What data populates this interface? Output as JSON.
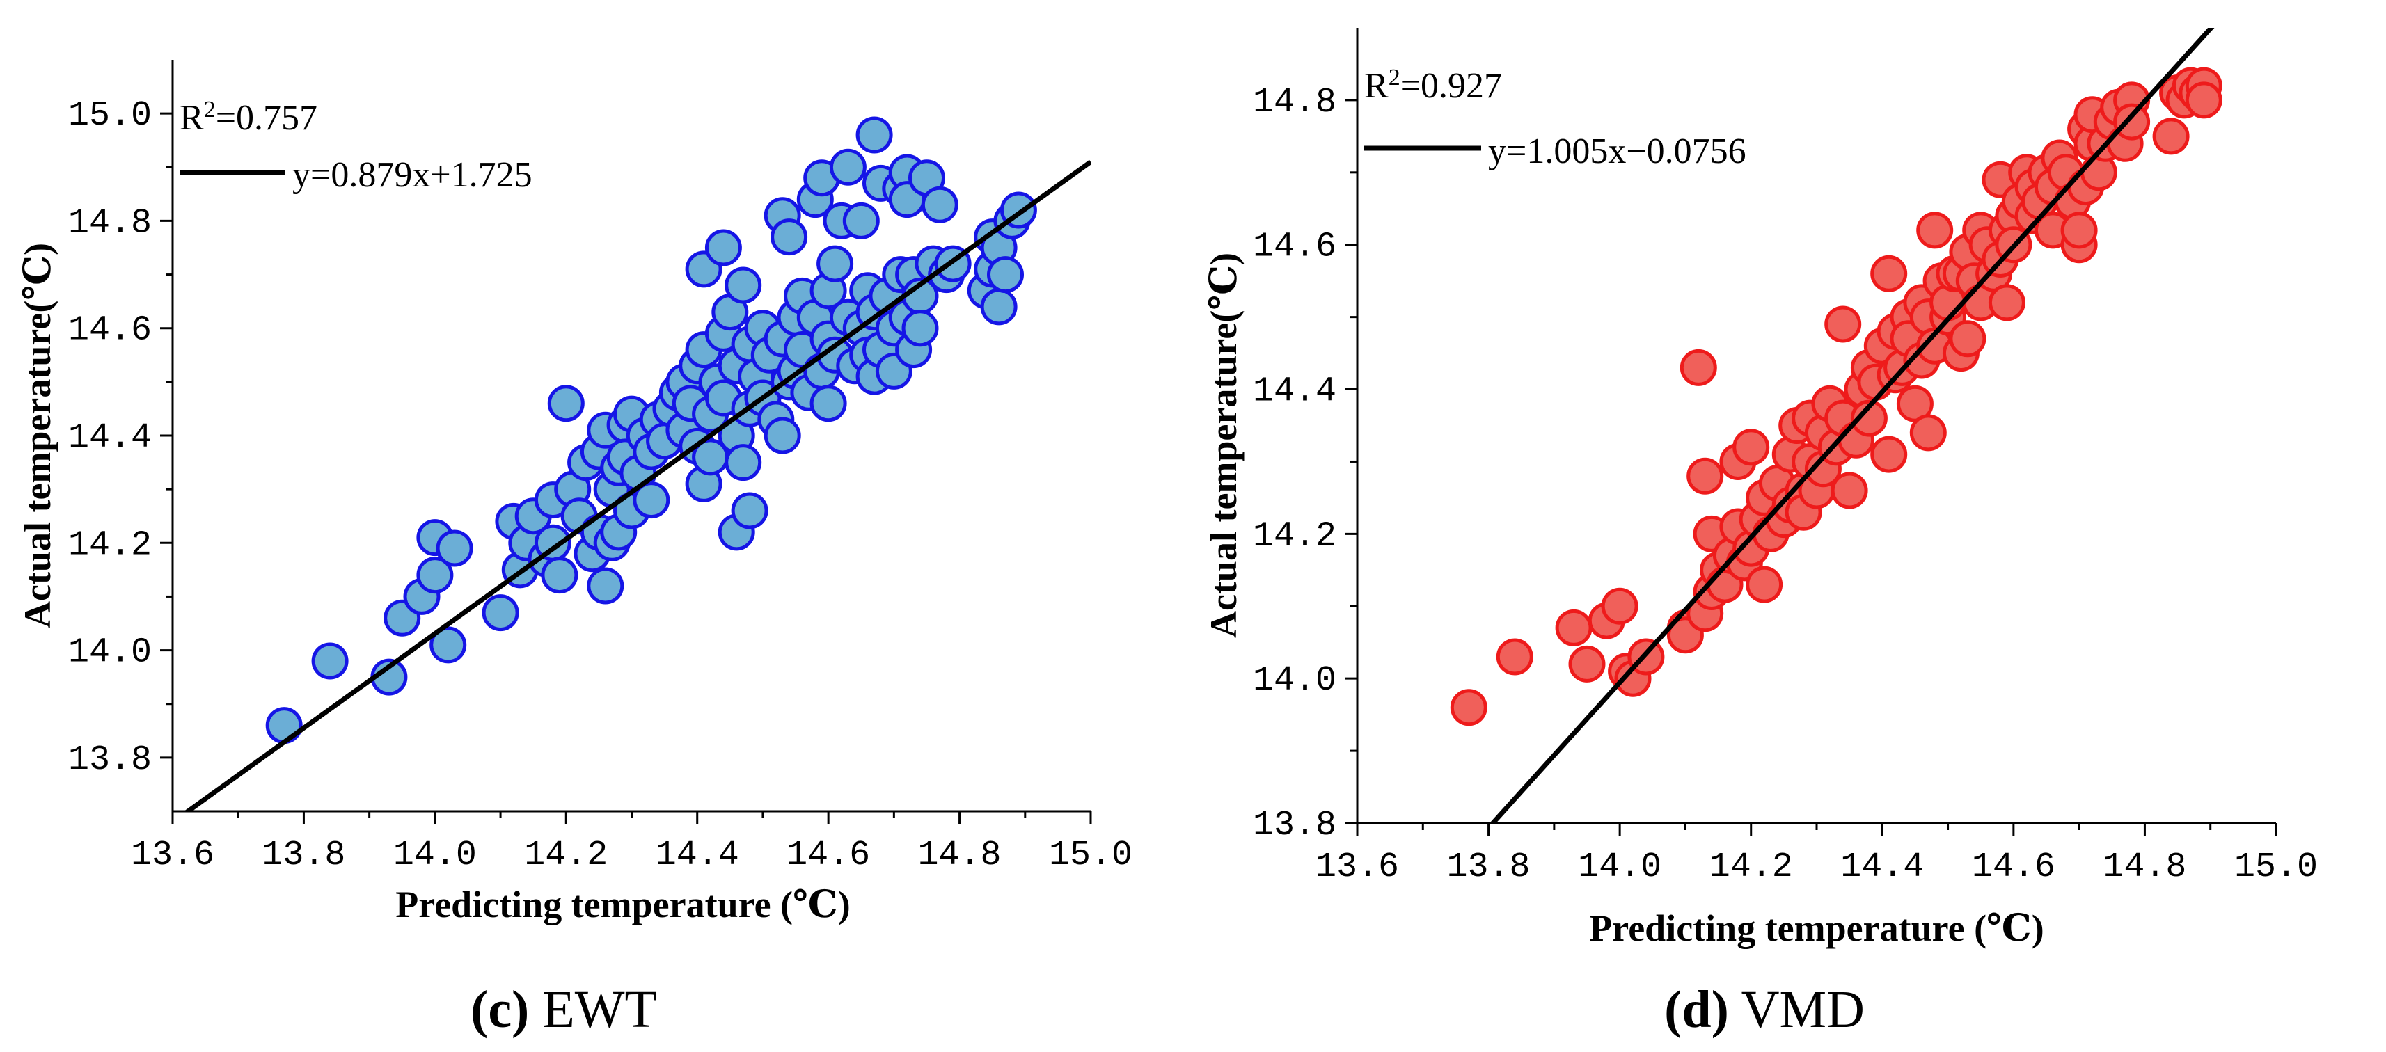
{
  "chart_data": [
    {
      "type": "scatter",
      "caption": {
        "letter": "(c)",
        "name": " EWT"
      },
      "xlabel": "Predicting temperature (℃)",
      "ylabel": "Actual temperature(℃)",
      "xlim": [
        13.6,
        15.0
      ],
      "ylim": [
        13.7,
        15.1
      ],
      "x_ticks": [
        "13.6",
        "13.8",
        "14.0",
        "14.2",
        "14.4",
        "14.6",
        "14.8",
        "15.0"
      ],
      "y_ticks": [
        "13.8",
        "14.0",
        "14.2",
        "14.4",
        "14.6",
        "14.8",
        "15.0"
      ],
      "r2_label": "R",
      "r2_sup": "2",
      "r2_value": "=0.757",
      "equation": "y=0.879x+1.725",
      "fit": {
        "slope": 0.879,
        "intercept": 1.725
      },
      "colors": {
        "fill": "#6baed6",
        "stroke": "#1515e6",
        "line": "#000000"
      },
      "points": [
        [
          13.77,
          13.86
        ],
        [
          13.84,
          13.98
        ],
        [
          13.93,
          13.95
        ],
        [
          13.95,
          14.06
        ],
        [
          13.98,
          14.1
        ],
        [
          14.0,
          14.14
        ],
        [
          14.0,
          14.21
        ],
        [
          14.02,
          14.01
        ],
        [
          14.03,
          14.19
        ],
        [
          14.1,
          14.07
        ],
        [
          14.12,
          14.24
        ],
        [
          14.13,
          14.15
        ],
        [
          14.14,
          14.2
        ],
        [
          14.15,
          14.25
        ],
        [
          14.17,
          14.17
        ],
        [
          14.18,
          14.2
        ],
        [
          14.18,
          14.28
        ],
        [
          14.19,
          14.14
        ],
        [
          14.2,
          14.46
        ],
        [
          14.21,
          14.3
        ],
        [
          14.22,
          14.25
        ],
        [
          14.23,
          14.35
        ],
        [
          14.24,
          14.18
        ],
        [
          14.25,
          14.22
        ],
        [
          14.25,
          14.37
        ],
        [
          14.26,
          14.41
        ],
        [
          14.26,
          14.12
        ],
        [
          14.27,
          14.2
        ],
        [
          14.27,
          14.3
        ],
        [
          14.28,
          14.34
        ],
        [
          14.28,
          14.22
        ],
        [
          14.29,
          14.42
        ],
        [
          14.29,
          14.36
        ],
        [
          14.3,
          14.44
        ],
        [
          14.3,
          14.26
        ],
        [
          14.31,
          14.33
        ],
        [
          14.32,
          14.4
        ],
        [
          14.33,
          14.28
        ],
        [
          14.33,
          14.37
        ],
        [
          14.34,
          14.43
        ],
        [
          14.35,
          14.39
        ],
        [
          14.36,
          14.45
        ],
        [
          14.37,
          14.48
        ],
        [
          14.38,
          14.41
        ],
        [
          14.38,
          14.5
        ],
        [
          14.39,
          14.46
        ],
        [
          14.4,
          14.53
        ],
        [
          14.4,
          14.38
        ],
        [
          14.41,
          14.56
        ],
        [
          14.41,
          14.31
        ],
        [
          14.41,
          14.71
        ],
        [
          14.42,
          14.36
        ],
        [
          14.42,
          14.44
        ],
        [
          14.43,
          14.5
        ],
        [
          14.44,
          14.75
        ],
        [
          14.44,
          14.59
        ],
        [
          14.44,
          14.47
        ],
        [
          14.45,
          14.63
        ],
        [
          14.46,
          14.4
        ],
        [
          14.46,
          14.53
        ],
        [
          14.46,
          14.22
        ],
        [
          14.47,
          14.35
        ],
        [
          14.47,
          14.68
        ],
        [
          14.48,
          14.45
        ],
        [
          14.48,
          14.57
        ],
        [
          14.48,
          14.26
        ],
        [
          14.49,
          14.51
        ],
        [
          14.5,
          14.6
        ],
        [
          14.5,
          14.47
        ],
        [
          14.51,
          14.55
        ],
        [
          14.52,
          14.43
        ],
        [
          14.53,
          14.4
        ],
        [
          14.53,
          14.58
        ],
        [
          14.53,
          14.81
        ],
        [
          14.54,
          14.77
        ],
        [
          14.54,
          14.5
        ],
        [
          14.55,
          14.62
        ],
        [
          14.55,
          14.52
        ],
        [
          14.56,
          14.56
        ],
        [
          14.56,
          14.66
        ],
        [
          14.57,
          14.48
        ],
        [
          14.58,
          14.62
        ],
        [
          14.58,
          14.84
        ],
        [
          14.59,
          14.88
        ],
        [
          14.59,
          14.52
        ],
        [
          14.6,
          14.58
        ],
        [
          14.6,
          14.67
        ],
        [
          14.6,
          14.46
        ],
        [
          14.61,
          14.72
        ],
        [
          14.61,
          14.55
        ],
        [
          14.62,
          14.8
        ],
        [
          14.63,
          14.9
        ],
        [
          14.63,
          14.62
        ],
        [
          14.64,
          14.53
        ],
        [
          14.65,
          14.6
        ],
        [
          14.65,
          14.8
        ],
        [
          14.66,
          14.67
        ],
        [
          14.66,
          14.55
        ],
        [
          14.67,
          14.51
        ],
        [
          14.67,
          14.63
        ],
        [
          14.67,
          14.96
        ],
        [
          14.68,
          14.87
        ],
        [
          14.68,
          14.56
        ],
        [
          14.69,
          14.66
        ],
        [
          14.7,
          14.52
        ],
        [
          14.7,
          14.6
        ],
        [
          14.71,
          14.86
        ],
        [
          14.71,
          14.7
        ],
        [
          14.72,
          14.89
        ],
        [
          14.72,
          14.84
        ],
        [
          14.72,
          14.62
        ],
        [
          14.73,
          14.7
        ],
        [
          14.73,
          14.56
        ],
        [
          14.74,
          14.66
        ],
        [
          14.74,
          14.6
        ],
        [
          14.75,
          14.88
        ],
        [
          14.76,
          14.72
        ],
        [
          14.77,
          14.83
        ],
        [
          14.78,
          14.7
        ],
        [
          14.79,
          14.72
        ],
        [
          14.84,
          14.67
        ],
        [
          14.85,
          14.71
        ],
        [
          14.85,
          14.77
        ],
        [
          14.86,
          14.64
        ],
        [
          14.86,
          14.75
        ],
        [
          14.87,
          14.7
        ],
        [
          14.88,
          14.8
        ],
        [
          14.89,
          14.82
        ]
      ]
    },
    {
      "type": "scatter",
      "caption": {
        "letter": "(d)",
        "name": " VMD"
      },
      "xlabel": "Predicting temperature (℃)",
      "ylabel": "Actual temperature(℃)",
      "xlim": [
        13.6,
        15.0
      ],
      "ylim": [
        13.8,
        14.9
      ],
      "x_ticks": [
        "13.6",
        "13.8",
        "14.0",
        "14.2",
        "14.4",
        "14.6",
        "14.8",
        "15.0"
      ],
      "y_ticks": [
        "13.8",
        "14.0",
        "14.2",
        "14.4",
        "14.6",
        "14.8"
      ],
      "r2_label": "R",
      "r2_sup": "2",
      "r2_value": "=0.927",
      "equation": "y=1.005x−0.0756",
      "fit": {
        "slope": 1.005,
        "intercept": -0.0756
      },
      "colors": {
        "fill": "#f0605a",
        "stroke": "#ee1b1b",
        "line": "#000000"
      },
      "points": [
        [
          13.77,
          13.96
        ],
        [
          13.84,
          14.03
        ],
        [
          13.93,
          14.07
        ],
        [
          13.95,
          14.02
        ],
        [
          13.98,
          14.08
        ],
        [
          14.0,
          14.1
        ],
        [
          14.01,
          14.01
        ],
        [
          14.02,
          14.0
        ],
        [
          14.04,
          14.03
        ],
        [
          14.1,
          14.07
        ],
        [
          14.1,
          14.06
        ],
        [
          14.12,
          14.43
        ],
        [
          14.13,
          14.28
        ],
        [
          14.13,
          14.09
        ],
        [
          14.14,
          14.12
        ],
        [
          14.14,
          14.2
        ],
        [
          14.15,
          14.15
        ],
        [
          14.16,
          14.13
        ],
        [
          14.17,
          14.17
        ],
        [
          14.18,
          14.3
        ],
        [
          14.18,
          14.21
        ],
        [
          14.19,
          14.16
        ],
        [
          14.2,
          14.32
        ],
        [
          14.2,
          14.18
        ],
        [
          14.21,
          14.22
        ],
        [
          14.22,
          14.13
        ],
        [
          14.22,
          14.25
        ],
        [
          14.23,
          14.2
        ],
        [
          14.24,
          14.27
        ],
        [
          14.25,
          14.22
        ],
        [
          14.26,
          14.31
        ],
        [
          14.26,
          14.24
        ],
        [
          14.27,
          14.35
        ],
        [
          14.28,
          14.26
        ],
        [
          14.28,
          14.23
        ],
        [
          14.29,
          14.3
        ],
        [
          14.29,
          14.36
        ],
        [
          14.3,
          14.26
        ],
        [
          14.31,
          14.34
        ],
        [
          14.31,
          14.29
        ],
        [
          14.32,
          14.38
        ],
        [
          14.33,
          14.32
        ],
        [
          14.34,
          14.36
        ],
        [
          14.34,
          14.49
        ],
        [
          14.35,
          14.26
        ],
        [
          14.36,
          14.33
        ],
        [
          14.37,
          14.4
        ],
        [
          14.38,
          14.36
        ],
        [
          14.38,
          14.43
        ],
        [
          14.39,
          14.41
        ],
        [
          14.4,
          14.46
        ],
        [
          14.41,
          14.31
        ],
        [
          14.41,
          14.56
        ],
        [
          14.42,
          14.42
        ],
        [
          14.42,
          14.48
        ],
        [
          14.43,
          14.43
        ],
        [
          14.44,
          14.5
        ],
        [
          14.44,
          14.47
        ],
        [
          14.45,
          14.38
        ],
        [
          14.46,
          14.44
        ],
        [
          14.46,
          14.52
        ],
        [
          14.47,
          14.34
        ],
        [
          14.47,
          14.5
        ],
        [
          14.48,
          14.46
        ],
        [
          14.48,
          14.62
        ],
        [
          14.49,
          14.55
        ],
        [
          14.5,
          14.5
        ],
        [
          14.5,
          14.52
        ],
        [
          14.51,
          14.56
        ],
        [
          14.52,
          14.45
        ],
        [
          14.52,
          14.56
        ],
        [
          14.53,
          14.59
        ],
        [
          14.53,
          14.47
        ],
        [
          14.54,
          14.55
        ],
        [
          14.55,
          14.52
        ],
        [
          14.55,
          14.62
        ],
        [
          14.56,
          14.6
        ],
        [
          14.57,
          14.56
        ],
        [
          14.58,
          14.58
        ],
        [
          14.58,
          14.69
        ],
        [
          14.59,
          14.52
        ],
        [
          14.59,
          14.62
        ],
        [
          14.6,
          14.64
        ],
        [
          14.6,
          14.6
        ],
        [
          14.61,
          14.66
        ],
        [
          14.62,
          14.7
        ],
        [
          14.63,
          14.68
        ],
        [
          14.63,
          14.64
        ],
        [
          14.64,
          14.66
        ],
        [
          14.65,
          14.7
        ],
        [
          14.66,
          14.62
        ],
        [
          14.66,
          14.68
        ],
        [
          14.67,
          14.72
        ],
        [
          14.68,
          14.7
        ],
        [
          14.69,
          14.66
        ],
        [
          14.7,
          14.6
        ],
        [
          14.7,
          14.62
        ],
        [
          14.71,
          14.76
        ],
        [
          14.71,
          14.68
        ],
        [
          14.72,
          14.74
        ],
        [
          14.72,
          14.78
        ],
        [
          14.73,
          14.7
        ],
        [
          14.74,
          14.74
        ],
        [
          14.75,
          14.77
        ],
        [
          14.76,
          14.79
        ],
        [
          14.77,
          14.74
        ],
        [
          14.78,
          14.8
        ],
        [
          14.78,
          14.77
        ],
        [
          14.84,
          14.75
        ],
        [
          14.85,
          14.81
        ],
        [
          14.86,
          14.8
        ],
        [
          14.87,
          14.82
        ],
        [
          14.88,
          14.81
        ],
        [
          14.89,
          14.82
        ],
        [
          14.89,
          14.8
        ]
      ]
    }
  ]
}
